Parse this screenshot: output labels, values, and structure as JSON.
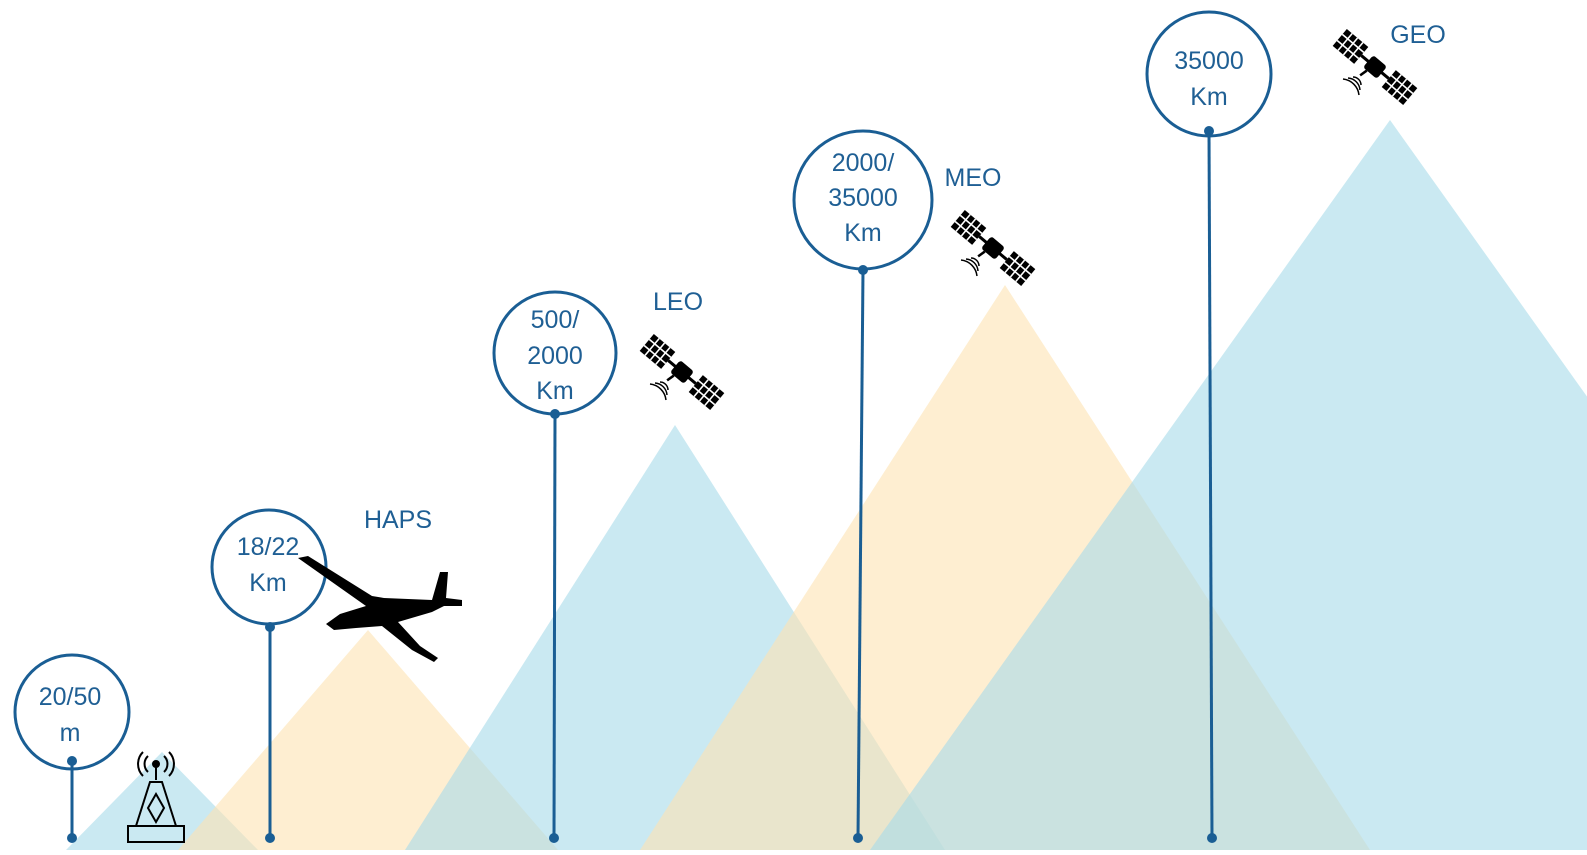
{
  "colors": {
    "blue_line": "#1a5e94",
    "text_blue": "#1f5f94",
    "triangle_blue": "#a6dbea",
    "triangle_orange": "#fde3b3",
    "icon": "#000000"
  },
  "altitudes": [
    {
      "id": "ground",
      "lines": [
        "20/50",
        "m"
      ],
      "platform": "",
      "icon": "ground-tower-icon"
    },
    {
      "id": "haps",
      "lines": [
        "18/22",
        "Km"
      ],
      "platform": "HAPS",
      "icon": "glider-aircraft-icon"
    },
    {
      "id": "leo",
      "lines": [
        "500/",
        "2000",
        "Km"
      ],
      "platform": "LEO",
      "icon": "satellite-icon"
    },
    {
      "id": "meo",
      "lines": [
        "2000/",
        "35000",
        "Km"
      ],
      "platform": "MEO",
      "icon": "satellite-icon"
    },
    {
      "id": "geo",
      "lines": [
        "35000",
        "Km"
      ],
      "platform": "GEO",
      "icon": "satellite-icon"
    }
  ]
}
